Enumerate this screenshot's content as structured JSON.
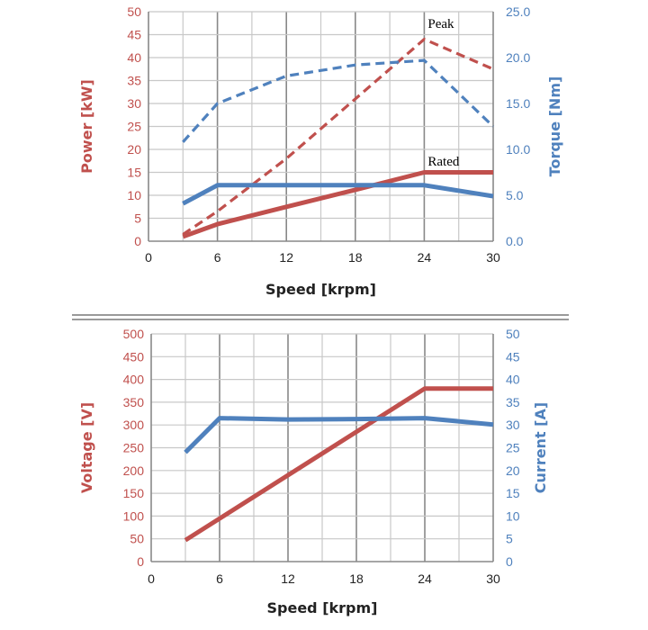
{
  "colors": {
    "power_red": "#c0504d",
    "torque_blue": "#4f81bd",
    "tick_black": "#222222",
    "grid_minor": "#c8c8c8",
    "grid_major": "#888888",
    "separator": "#9a9a9a"
  },
  "chart_data": [
    {
      "type": "line",
      "xlabel": "Speed [krpm]",
      "ylabel_left": "Power [kW]",
      "ylabel_right": "Torque [Nm]",
      "xlim": [
        0,
        30
      ],
      "x_ticks": [
        "0",
        "6",
        "12",
        "18",
        "24",
        "30"
      ],
      "ylim_left": [
        0,
        50
      ],
      "y_ticks_left": [
        "0",
        "5",
        "10",
        "15",
        "20",
        "25",
        "30",
        "35",
        "40",
        "45",
        "50"
      ],
      "ylim_right": [
        0,
        25
      ],
      "y_ticks_right": [
        "0.0",
        "5.0",
        "10.0",
        "15.0",
        "20.0",
        "25.0"
      ],
      "grid": true,
      "annotations": [
        {
          "text": "Peak",
          "x": 24,
          "y": 46.5
        },
        {
          "text": "Rated",
          "x": 24,
          "y": 16.5
        }
      ],
      "series": [
        {
          "axis": "left",
          "style": "dashed",
          "color": "#c0504d",
          "x": [
            3,
            6,
            12,
            18,
            24,
            30
          ],
          "values": [
            1.5,
            6.5,
            18,
            31,
            44,
            37.5
          ]
        },
        {
          "axis": "right",
          "style": "dashed",
          "color": "#4f81bd",
          "x": [
            3,
            6,
            12,
            18,
            24,
            30
          ],
          "values": [
            10.8,
            15.0,
            18.0,
            19.2,
            19.7,
            12.5
          ]
        },
        {
          "axis": "left",
          "style": "solid",
          "color": "#c0504d",
          "x": [
            3,
            6,
            12,
            18,
            24,
            30
          ],
          "values": [
            1,
            3.7,
            7.5,
            11.2,
            15,
            15
          ]
        },
        {
          "axis": "right",
          "style": "solid",
          "color": "#4f81bd",
          "x": [
            3,
            6,
            12,
            18,
            24,
            30
          ],
          "values": [
            4.1,
            6.1,
            6.1,
            6.1,
            6.1,
            4.9
          ]
        }
      ]
    },
    {
      "type": "line",
      "xlabel": "Speed [krpm]",
      "ylabel_left": "Voltage [V]",
      "ylabel_right": "Current [A]",
      "xlim": [
        0,
        30
      ],
      "x_ticks": [
        "0",
        "6",
        "12",
        "18",
        "24",
        "30"
      ],
      "ylim_left": [
        0,
        500
      ],
      "y_ticks_left": [
        "0",
        "50",
        "100",
        "150",
        "200",
        "250",
        "300",
        "350",
        "400",
        "450",
        "500"
      ],
      "ylim_right": [
        0,
        50
      ],
      "y_ticks_right": [
        "0",
        "5",
        "10",
        "15",
        "20",
        "25",
        "30",
        "35",
        "40",
        "45",
        "50"
      ],
      "grid": true,
      "annotations": [],
      "series": [
        {
          "axis": "left",
          "style": "solid",
          "color": "#c0504d",
          "x": [
            3,
            24,
            30
          ],
          "values": [
            47,
            380,
            380
          ]
        },
        {
          "axis": "right",
          "style": "solid",
          "color": "#4f81bd",
          "x": [
            3,
            6,
            12,
            18,
            24,
            30
          ],
          "values": [
            24,
            31.5,
            31.2,
            31.3,
            31.5,
            30.1
          ]
        }
      ]
    }
  ]
}
